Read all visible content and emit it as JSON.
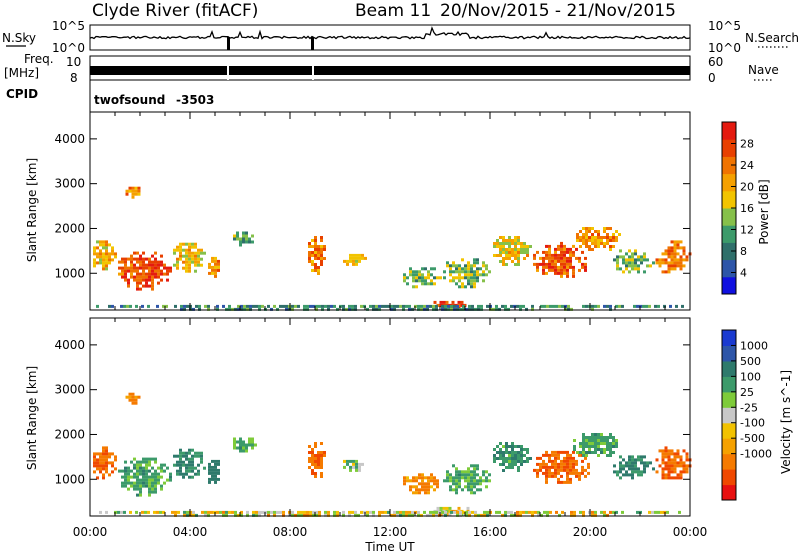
{
  "header": {
    "station": "Clyde River (fitACF)",
    "beam": "Beam 11",
    "date_range": "20/Nov/2015 - 21/Nov/2015"
  },
  "strips": {
    "nsky_label": "N.Sky",
    "nsky_ticks": [
      "10^5",
      "10^0"
    ],
    "nsearch_label": "N.Search",
    "nsearch_ticks": [
      "10^5",
      "10^0"
    ],
    "freq_label_1": "Freq.",
    "freq_label_2": "[MHz]",
    "freq_ticks": [
      "10",
      "8"
    ],
    "nave_label": "Nave",
    "nave_ticks": [
      "60",
      "0"
    ],
    "cpid_label": "CPID",
    "cpid_name": "twofsound",
    "cpid_value": "-3503"
  },
  "colors": {
    "power_scale": [
      "#1010e0",
      "#2d55a8",
      "#2f6f6a",
      "#3c9a6a",
      "#86c04a",
      "#f2c400",
      "#f5a000",
      "#f07300",
      "#e84000",
      "#e41a10"
    ],
    "velocity_scale": [
      "#e81010",
      "#f04800",
      "#f57a00",
      "#f5a100",
      "#f2c200",
      "#c8c8c8",
      "#7ecb3a",
      "#3c9a6a",
      "#2e7a6c",
      "#2d55a8",
      "#1a3ad0"
    ]
  },
  "chart_data": [
    {
      "type": "heatmap",
      "name": "power-panel",
      "xlabel": "Time UT",
      "ylabel": "Slant Range [km]",
      "x_ticks": [
        "00:00",
        "04:00",
        "08:00",
        "12:00",
        "16:00",
        "20:00",
        "00:00"
      ],
      "x_range_hours": [
        0,
        24
      ],
      "y_ticks": [
        1000,
        2000,
        3000,
        4000
      ],
      "ylim": [
        180,
        4600
      ],
      "colorbar": {
        "label": "Power [dB]",
        "range": [
          0,
          32
        ],
        "ticks": [
          4,
          8,
          12,
          16,
          20,
          24,
          28
        ]
      },
      "echo_regions": [
        {
          "t": [
            0.0,
            1.0
          ],
          "r": [
            1000,
            1800
          ],
          "v": 20
        },
        {
          "t": [
            1.0,
            3.2
          ],
          "r": [
            650,
            1550
          ],
          "v": 27
        },
        {
          "t": [
            3.2,
            4.6
          ],
          "r": [
            1050,
            1750
          ],
          "v": 18
        },
        {
          "t": [
            4.6,
            5.2
          ],
          "r": [
            900,
            1500
          ],
          "v": 22
        },
        {
          "t": [
            5.6,
            6.6
          ],
          "r": [
            1650,
            2000
          ],
          "v": 12
        },
        {
          "t": [
            8.6,
            9.4
          ],
          "r": [
            1000,
            1900
          ],
          "v": 23
        },
        {
          "t": [
            10.0,
            11.0
          ],
          "r": [
            1200,
            1500
          ],
          "v": 17
        },
        {
          "t": [
            12.4,
            14.0
          ],
          "r": [
            700,
            1200
          ],
          "v": 13
        },
        {
          "t": [
            14.0,
            16.0
          ],
          "r": [
            700,
            1400
          ],
          "v": 14
        },
        {
          "t": [
            13.5,
            15.2
          ],
          "r": [
            200,
            450
          ],
          "v": 28
        },
        {
          "t": [
            16.0,
            17.6
          ],
          "r": [
            1200,
            1900
          ],
          "v": 18
        },
        {
          "t": [
            17.6,
            20.0
          ],
          "r": [
            900,
            1700
          ],
          "v": 26
        },
        {
          "t": [
            19.2,
            21.2
          ],
          "r": [
            1500,
            2100
          ],
          "v": 22
        },
        {
          "t": [
            20.8,
            22.5
          ],
          "r": [
            1000,
            1600
          ],
          "v": 13
        },
        {
          "t": [
            22.5,
            24.0
          ],
          "r": [
            1000,
            1800
          ],
          "v": 24
        },
        {
          "t": [
            1.3,
            2.0
          ],
          "r": [
            2700,
            3000
          ],
          "v": 22
        },
        {
          "t": [
            0.0,
            24.0
          ],
          "r": [
            200,
            360
          ],
          "v": 10
        }
      ]
    },
    {
      "type": "heatmap",
      "name": "velocity-panel",
      "xlabel": "Time UT",
      "ylabel": "Slant Range [km]",
      "x_ticks": [
        "00:00",
        "04:00",
        "08:00",
        "12:00",
        "16:00",
        "20:00",
        "00:00"
      ],
      "x_range_hours": [
        0,
        24
      ],
      "y_ticks": [
        1000,
        2000,
        3000,
        4000
      ],
      "ylim": [
        180,
        4600
      ],
      "colorbar": {
        "label": "Velocity [m s^-1]",
        "ticks": [
          "1000",
          "500",
          "100",
          "25",
          "-25",
          "-100",
          "-500",
          "-1000"
        ]
      },
      "echo_regions": [
        {
          "t": [
            0.0,
            1.0
          ],
          "r": [
            1000,
            1800
          ],
          "v": -300
        },
        {
          "t": [
            1.0,
            3.2
          ],
          "r": [
            650,
            1550
          ],
          "v": 150
        },
        {
          "t": [
            3.2,
            4.6
          ],
          "r": [
            1050,
            1750
          ],
          "v": 250
        },
        {
          "t": [
            4.6,
            5.2
          ],
          "r": [
            900,
            1500
          ],
          "v": 400
        },
        {
          "t": [
            5.6,
            6.6
          ],
          "r": [
            1650,
            2000
          ],
          "v": 150
        },
        {
          "t": [
            8.6,
            9.4
          ],
          "r": [
            1000,
            1900
          ],
          "v": -250
        },
        {
          "t": [
            10.0,
            11.0
          ],
          "r": [
            1200,
            1500
          ],
          "v": 80
        },
        {
          "t": [
            12.4,
            14.0
          ],
          "r": [
            700,
            1200
          ],
          "v": -150
        },
        {
          "t": [
            14.0,
            16.0
          ],
          "r": [
            700,
            1400
          ],
          "v": 150
        },
        {
          "t": [
            13.5,
            15.2
          ],
          "r": [
            200,
            450
          ],
          "v": 0
        },
        {
          "t": [
            16.0,
            17.6
          ],
          "r": [
            1200,
            1900
          ],
          "v": 200
        },
        {
          "t": [
            17.6,
            20.0
          ],
          "r": [
            900,
            1700
          ],
          "v": -300
        },
        {
          "t": [
            19.2,
            21.2
          ],
          "r": [
            1500,
            2100
          ],
          "v": 150
        },
        {
          "t": [
            20.8,
            22.5
          ],
          "r": [
            1000,
            1600
          ],
          "v": 300
        },
        {
          "t": [
            22.5,
            24.0
          ],
          "r": [
            1000,
            1800
          ],
          "v": -300
        },
        {
          "t": [
            1.3,
            2.0
          ],
          "r": [
            2700,
            3000
          ],
          "v": -150
        },
        {
          "t": [
            0.0,
            24.0
          ],
          "r": [
            200,
            360
          ],
          "v": 0
        }
      ]
    }
  ]
}
